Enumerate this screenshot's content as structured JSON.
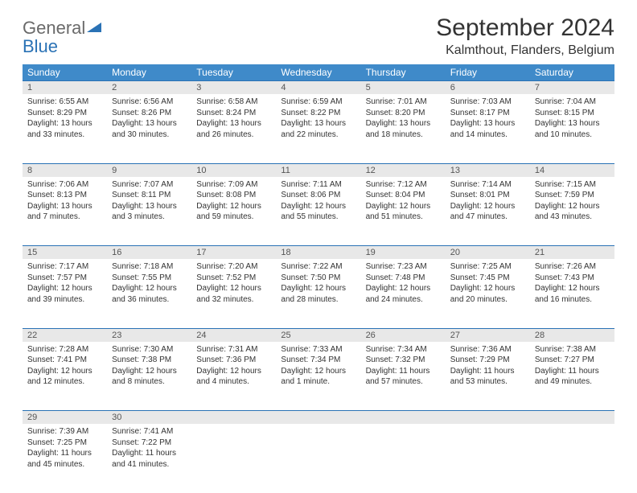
{
  "logo": {
    "t1": "General",
    "t2": "Blue",
    "tri_color": "#2a72b5"
  },
  "header": {
    "title": "September 2024",
    "location": "Kalmthout, Flanders, Belgium"
  },
  "calendar": {
    "header_bg": "#3f8ac9",
    "header_fg": "#ffffff",
    "daynum_bg": "#e8e8e8",
    "daynum_border": "#2a72b5",
    "columns": [
      "Sunday",
      "Monday",
      "Tuesday",
      "Wednesday",
      "Thursday",
      "Friday",
      "Saturday"
    ],
    "weeks": [
      [
        {
          "n": "1",
          "sunrise": "6:55 AM",
          "sunset": "8:29 PM",
          "daylight": "13 hours and 33 minutes."
        },
        {
          "n": "2",
          "sunrise": "6:56 AM",
          "sunset": "8:26 PM",
          "daylight": "13 hours and 30 minutes."
        },
        {
          "n": "3",
          "sunrise": "6:58 AM",
          "sunset": "8:24 PM",
          "daylight": "13 hours and 26 minutes."
        },
        {
          "n": "4",
          "sunrise": "6:59 AM",
          "sunset": "8:22 PM",
          "daylight": "13 hours and 22 minutes."
        },
        {
          "n": "5",
          "sunrise": "7:01 AM",
          "sunset": "8:20 PM",
          "daylight": "13 hours and 18 minutes."
        },
        {
          "n": "6",
          "sunrise": "7:03 AM",
          "sunset": "8:17 PM",
          "daylight": "13 hours and 14 minutes."
        },
        {
          "n": "7",
          "sunrise": "7:04 AM",
          "sunset": "8:15 PM",
          "daylight": "13 hours and 10 minutes."
        }
      ],
      [
        {
          "n": "8",
          "sunrise": "7:06 AM",
          "sunset": "8:13 PM",
          "daylight": "13 hours and 7 minutes."
        },
        {
          "n": "9",
          "sunrise": "7:07 AM",
          "sunset": "8:11 PM",
          "daylight": "13 hours and 3 minutes."
        },
        {
          "n": "10",
          "sunrise": "7:09 AM",
          "sunset": "8:08 PM",
          "daylight": "12 hours and 59 minutes."
        },
        {
          "n": "11",
          "sunrise": "7:11 AM",
          "sunset": "8:06 PM",
          "daylight": "12 hours and 55 minutes."
        },
        {
          "n": "12",
          "sunrise": "7:12 AM",
          "sunset": "8:04 PM",
          "daylight": "12 hours and 51 minutes."
        },
        {
          "n": "13",
          "sunrise": "7:14 AM",
          "sunset": "8:01 PM",
          "daylight": "12 hours and 47 minutes."
        },
        {
          "n": "14",
          "sunrise": "7:15 AM",
          "sunset": "7:59 PM",
          "daylight": "12 hours and 43 minutes."
        }
      ],
      [
        {
          "n": "15",
          "sunrise": "7:17 AM",
          "sunset": "7:57 PM",
          "daylight": "12 hours and 39 minutes."
        },
        {
          "n": "16",
          "sunrise": "7:18 AM",
          "sunset": "7:55 PM",
          "daylight": "12 hours and 36 minutes."
        },
        {
          "n": "17",
          "sunrise": "7:20 AM",
          "sunset": "7:52 PM",
          "daylight": "12 hours and 32 minutes."
        },
        {
          "n": "18",
          "sunrise": "7:22 AM",
          "sunset": "7:50 PM",
          "daylight": "12 hours and 28 minutes."
        },
        {
          "n": "19",
          "sunrise": "7:23 AM",
          "sunset": "7:48 PM",
          "daylight": "12 hours and 24 minutes."
        },
        {
          "n": "20",
          "sunrise": "7:25 AM",
          "sunset": "7:45 PM",
          "daylight": "12 hours and 20 minutes."
        },
        {
          "n": "21",
          "sunrise": "7:26 AM",
          "sunset": "7:43 PM",
          "daylight": "12 hours and 16 minutes."
        }
      ],
      [
        {
          "n": "22",
          "sunrise": "7:28 AM",
          "sunset": "7:41 PM",
          "daylight": "12 hours and 12 minutes."
        },
        {
          "n": "23",
          "sunrise": "7:30 AM",
          "sunset": "7:38 PM",
          "daylight": "12 hours and 8 minutes."
        },
        {
          "n": "24",
          "sunrise": "7:31 AM",
          "sunset": "7:36 PM",
          "daylight": "12 hours and 4 minutes."
        },
        {
          "n": "25",
          "sunrise": "7:33 AM",
          "sunset": "7:34 PM",
          "daylight": "12 hours and 1 minute."
        },
        {
          "n": "26",
          "sunrise": "7:34 AM",
          "sunset": "7:32 PM",
          "daylight": "11 hours and 57 minutes."
        },
        {
          "n": "27",
          "sunrise": "7:36 AM",
          "sunset": "7:29 PM",
          "daylight": "11 hours and 53 minutes."
        },
        {
          "n": "28",
          "sunrise": "7:38 AM",
          "sunset": "7:27 PM",
          "daylight": "11 hours and 49 minutes."
        }
      ],
      [
        {
          "n": "29",
          "sunrise": "7:39 AM",
          "sunset": "7:25 PM",
          "daylight": "11 hours and 45 minutes."
        },
        {
          "n": "30",
          "sunrise": "7:41 AM",
          "sunset": "7:22 PM",
          "daylight": "11 hours and 41 minutes."
        },
        null,
        null,
        null,
        null,
        null
      ]
    ]
  }
}
